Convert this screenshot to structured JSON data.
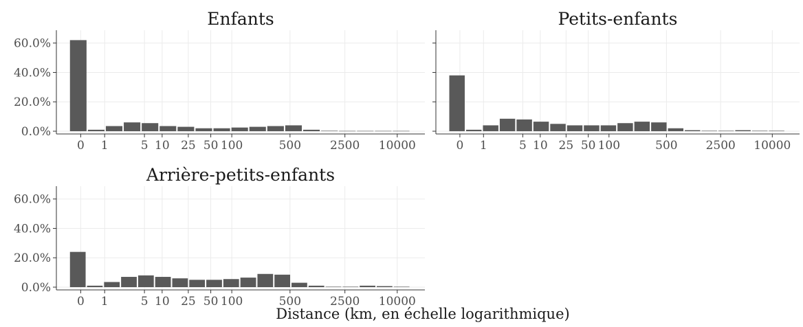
{
  "chart_data": [
    {
      "type": "bar",
      "title": "Enfants",
      "y_ticks": [
        "0.0%",
        "20.0%",
        "40.0%",
        "60.0%"
      ],
      "y_tick_values": [
        0,
        20,
        40,
        60
      ],
      "ylim": [
        0,
        65
      ],
      "x_ticks": [
        "0",
        "1",
        "5",
        "10",
        "25",
        "50",
        "100",
        "500",
        "2500",
        "10000"
      ],
      "values": [
        62,
        1,
        3.5,
        6,
        5.5,
        3.5,
        3,
        2,
        2,
        2.5,
        3,
        3.5,
        4,
        1,
        0.3,
        0.2,
        0.2,
        0.2,
        0.2
      ],
      "grid": true
    },
    {
      "type": "bar",
      "title": "Petits-enfants",
      "y_ticks": [
        "0.0%",
        "20.0%",
        "40.0%",
        "60.0%"
      ],
      "y_tick_values": [
        0,
        20,
        40,
        60
      ],
      "ylim": [
        0,
        65
      ],
      "x_ticks": [
        "0",
        "1",
        "5",
        "10",
        "25",
        "50",
        "100",
        "500",
        "2500",
        "10000"
      ],
      "values": [
        38,
        1,
        4,
        8.5,
        8,
        6.5,
        5,
        4,
        4,
        4,
        5.5,
        6.5,
        6,
        2,
        0.7,
        0.3,
        0.3,
        0.7,
        0.3,
        0.3
      ],
      "grid": true
    },
    {
      "type": "bar",
      "title": "Arrière-petits-enfants",
      "y_ticks": [
        "0.0%",
        "20.0%",
        "40.0%",
        "60.0%"
      ],
      "y_tick_values": [
        0,
        20,
        40,
        60
      ],
      "ylim": [
        0,
        65
      ],
      "x_ticks": [
        "0",
        "1",
        "5",
        "10",
        "25",
        "50",
        "100",
        "500",
        "2500",
        "10000"
      ],
      "values": [
        24,
        1,
        3.5,
        7,
        8,
        7,
        6,
        5,
        5,
        5.5,
        6.5,
        9,
        8.5,
        3,
        1,
        0.3,
        0.3,
        1,
        0.7,
        0.3
      ],
      "grid": true
    }
  ],
  "xlabel": "Distance (km, en échelle logarithmique)",
  "bar_color": "#595959",
  "grid_color": "#ebebeb"
}
